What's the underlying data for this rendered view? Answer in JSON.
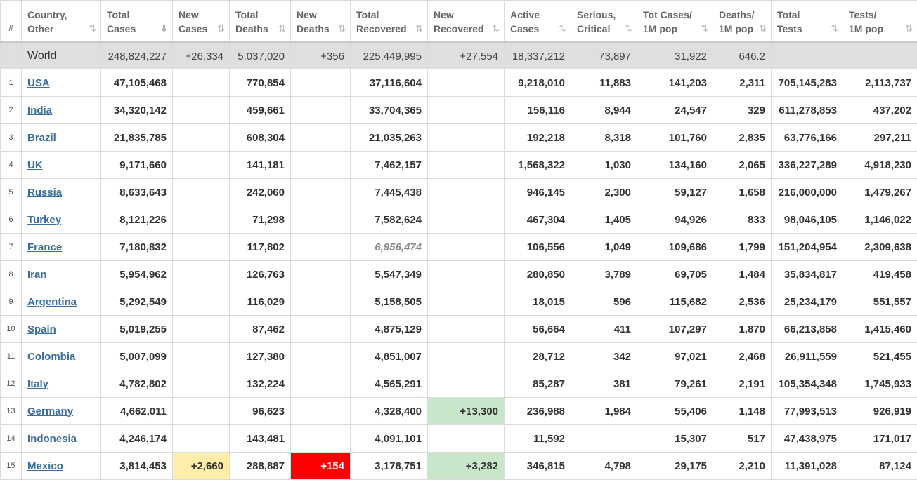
{
  "headers": [
    {
      "line1": "#",
      "line2": ""
    },
    {
      "line1": "Country,",
      "line2": "Other"
    },
    {
      "line1": "Total",
      "line2": "Cases"
    },
    {
      "line1": "New",
      "line2": "Cases"
    },
    {
      "line1": "Total",
      "line2": "Deaths"
    },
    {
      "line1": "New",
      "line2": "Deaths"
    },
    {
      "line1": "Total",
      "line2": "Recovered"
    },
    {
      "line1": "New",
      "line2": "Recovered"
    },
    {
      "line1": "Active",
      "line2": "Cases"
    },
    {
      "line1": "Serious,",
      "line2": "Critical"
    },
    {
      "line1": "Tot Cases/",
      "line2": "1M pop"
    },
    {
      "line1": "Deaths/",
      "line2": "1M pop"
    },
    {
      "line1": "Total",
      "line2": "Tests"
    },
    {
      "line1": "Tests/",
      "line2": "1M pop"
    }
  ],
  "sort_icons": {
    "default": "⇅",
    "active": "⇩"
  },
  "world": {
    "country": "World",
    "total_cases": "248,824,227",
    "new_cases": "+26,334",
    "total_deaths": "5,037,020",
    "new_deaths": "+356",
    "total_recovered": "225,449,995",
    "new_recovered": "+27,554",
    "active_cases": "18,337,212",
    "serious_critical": "73,897",
    "cases_per_1m": "31,922",
    "deaths_per_1m": "646.2",
    "total_tests": "",
    "tests_per_1m": ""
  },
  "rows": [
    {
      "rank": "1",
      "country": "USA",
      "total_cases": "47,105,468",
      "new_cases": "",
      "total_deaths": "770,854",
      "new_deaths": "",
      "total_recovered": "37,116,604",
      "new_recovered": "",
      "active_cases": "9,218,010",
      "serious_critical": "11,883",
      "cases_per_1m": "141,203",
      "deaths_per_1m": "2,311",
      "total_tests": "705,145,283",
      "tests_per_1m": "2,113,737"
    },
    {
      "rank": "2",
      "country": "India",
      "total_cases": "34,320,142",
      "new_cases": "",
      "total_deaths": "459,661",
      "new_deaths": "",
      "total_recovered": "33,704,365",
      "new_recovered": "",
      "active_cases": "156,116",
      "serious_critical": "8,944",
      "cases_per_1m": "24,547",
      "deaths_per_1m": "329",
      "total_tests": "611,278,853",
      "tests_per_1m": "437,202"
    },
    {
      "rank": "3",
      "country": "Brazil",
      "total_cases": "21,835,785",
      "new_cases": "",
      "total_deaths": "608,304",
      "new_deaths": "",
      "total_recovered": "21,035,263",
      "new_recovered": "",
      "active_cases": "192,218",
      "serious_critical": "8,318",
      "cases_per_1m": "101,760",
      "deaths_per_1m": "2,835",
      "total_tests": "63,776,166",
      "tests_per_1m": "297,211"
    },
    {
      "rank": "4",
      "country": "UK",
      "total_cases": "9,171,660",
      "new_cases": "",
      "total_deaths": "141,181",
      "new_deaths": "",
      "total_recovered": "7,462,157",
      "new_recovered": "",
      "active_cases": "1,568,322",
      "serious_critical": "1,030",
      "cases_per_1m": "134,160",
      "deaths_per_1m": "2,065",
      "total_tests": "336,227,289",
      "tests_per_1m": "4,918,230"
    },
    {
      "rank": "5",
      "country": "Russia",
      "total_cases": "8,633,643",
      "new_cases": "",
      "total_deaths": "242,060",
      "new_deaths": "",
      "total_recovered": "7,445,438",
      "new_recovered": "",
      "active_cases": "946,145",
      "serious_critical": "2,300",
      "cases_per_1m": "59,127",
      "deaths_per_1m": "1,658",
      "total_tests": "216,000,000",
      "tests_per_1m": "1,479,267"
    },
    {
      "rank": "6",
      "country": "Turkey",
      "total_cases": "8,121,226",
      "new_cases": "",
      "total_deaths": "71,298",
      "new_deaths": "",
      "total_recovered": "7,582,624",
      "new_recovered": "",
      "active_cases": "467,304",
      "serious_critical": "1,405",
      "cases_per_1m": "94,926",
      "deaths_per_1m": "833",
      "total_tests": "98,046,105",
      "tests_per_1m": "1,146,022"
    },
    {
      "rank": "7",
      "country": "France",
      "total_cases": "7,180,832",
      "new_cases": "",
      "total_deaths": "117,802",
      "new_deaths": "",
      "total_recovered": "6,956,474",
      "recovered_italic": true,
      "new_recovered": "",
      "active_cases": "106,556",
      "serious_critical": "1,049",
      "cases_per_1m": "109,686",
      "deaths_per_1m": "1,799",
      "total_tests": "151,204,954",
      "tests_per_1m": "2,309,638"
    },
    {
      "rank": "8",
      "country": "Iran",
      "total_cases": "5,954,962",
      "new_cases": "",
      "total_deaths": "126,763",
      "new_deaths": "",
      "total_recovered": "5,547,349",
      "new_recovered": "",
      "active_cases": "280,850",
      "serious_critical": "3,789",
      "cases_per_1m": "69,705",
      "deaths_per_1m": "1,484",
      "total_tests": "35,834,817",
      "tests_per_1m": "419,458"
    },
    {
      "rank": "9",
      "country": "Argentina",
      "total_cases": "5,292,549",
      "new_cases": "",
      "total_deaths": "116,029",
      "new_deaths": "",
      "total_recovered": "5,158,505",
      "new_recovered": "",
      "active_cases": "18,015",
      "serious_critical": "596",
      "cases_per_1m": "115,682",
      "deaths_per_1m": "2,536",
      "total_tests": "25,234,179",
      "tests_per_1m": "551,557"
    },
    {
      "rank": "10",
      "country": "Spain",
      "total_cases": "5,019,255",
      "new_cases": "",
      "total_deaths": "87,462",
      "new_deaths": "",
      "total_recovered": "4,875,129",
      "new_recovered": "",
      "active_cases": "56,664",
      "serious_critical": "411",
      "cases_per_1m": "107,297",
      "deaths_per_1m": "1,870",
      "total_tests": "66,213,858",
      "tests_per_1m": "1,415,460"
    },
    {
      "rank": "11",
      "country": "Colombia",
      "total_cases": "5,007,099",
      "new_cases": "",
      "total_deaths": "127,380",
      "new_deaths": "",
      "total_recovered": "4,851,007",
      "new_recovered": "",
      "active_cases": "28,712",
      "serious_critical": "342",
      "cases_per_1m": "97,021",
      "deaths_per_1m": "2,468",
      "total_tests": "26,911,559",
      "tests_per_1m": "521,455"
    },
    {
      "rank": "12",
      "country": "Italy",
      "total_cases": "4,782,802",
      "new_cases": "",
      "total_deaths": "132,224",
      "new_deaths": "",
      "total_recovered": "4,565,291",
      "new_recovered": "",
      "active_cases": "85,287",
      "serious_critical": "381",
      "cases_per_1m": "79,261",
      "deaths_per_1m": "2,191",
      "total_tests": "105,354,348",
      "tests_per_1m": "1,745,933"
    },
    {
      "rank": "13",
      "country": "Germany",
      "total_cases": "4,662,011",
      "new_cases": "",
      "total_deaths": "96,623",
      "new_deaths": "",
      "total_recovered": "4,328,400",
      "new_recovered": "+13,300",
      "active_cases": "236,988",
      "serious_critical": "1,984",
      "cases_per_1m": "55,406",
      "deaths_per_1m": "1,148",
      "total_tests": "77,993,513",
      "tests_per_1m": "926,919"
    },
    {
      "rank": "14",
      "country": "Indonesia",
      "total_cases": "4,246,174",
      "new_cases": "",
      "total_deaths": "143,481",
      "new_deaths": "",
      "total_recovered": "4,091,101",
      "new_recovered": "",
      "active_cases": "11,592",
      "serious_critical": "",
      "cases_per_1m": "15,307",
      "deaths_per_1m": "517",
      "total_tests": "47,438,975",
      "tests_per_1m": "171,017"
    },
    {
      "rank": "15",
      "country": "Mexico",
      "total_cases": "3,814,453",
      "new_cases": "+2,660",
      "total_deaths": "288,887",
      "new_deaths": "+154",
      "total_recovered": "3,178,751",
      "new_recovered": "+3,282",
      "active_cases": "346,815",
      "serious_critical": "4,798",
      "cases_per_1m": "29,175",
      "deaths_per_1m": "2,210",
      "total_tests": "11,391,028",
      "tests_per_1m": "87,124"
    }
  ],
  "colors": {
    "new_cases_highlight": "#ffeeaa",
    "new_deaths_highlight": "#ff0000",
    "new_recovered_highlight": "#c8e6c9",
    "link": "#3a6e9c",
    "world_row": "#dfdfdf"
  }
}
